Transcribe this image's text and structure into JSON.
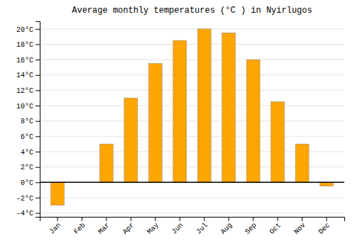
{
  "chart_data": {
    "type": "bar",
    "title": "Average monthly temperatures (°C ) in Nyírlugos",
    "categories": [
      "Jan",
      "Feb",
      "Mar",
      "Apr",
      "May",
      "Jun",
      "Jul",
      "Aug",
      "Sep",
      "Oct",
      "Nov",
      "Dec"
    ],
    "values": [
      -3.0,
      0.0,
      5.0,
      11.0,
      15.5,
      18.5,
      20.0,
      19.5,
      16.0,
      10.5,
      5.0,
      -0.5
    ],
    "color": "#FFA500",
    "ylim": [
      -4.5,
      21.0
    ],
    "yticks": [
      {
        "value": -4,
        "label": "-4°C"
      },
      {
        "value": -2,
        "label": "-2°C"
      },
      {
        "value": 0,
        "label": "0°C"
      },
      {
        "value": 2,
        "label": "2°C"
      },
      {
        "value": 4,
        "label": "4°C"
      },
      {
        "value": 6,
        "label": "6°C"
      },
      {
        "value": 8,
        "label": "8°C"
      },
      {
        "value": 10,
        "label": "10°C"
      },
      {
        "value": 12,
        "label": "12°C"
      },
      {
        "value": 14,
        "label": "14°C"
      },
      {
        "value": 16,
        "label": "16°C"
      },
      {
        "value": 18,
        "label": "18°C"
      },
      {
        "value": 20,
        "label": "20°C"
      }
    ],
    "grid": true
  }
}
